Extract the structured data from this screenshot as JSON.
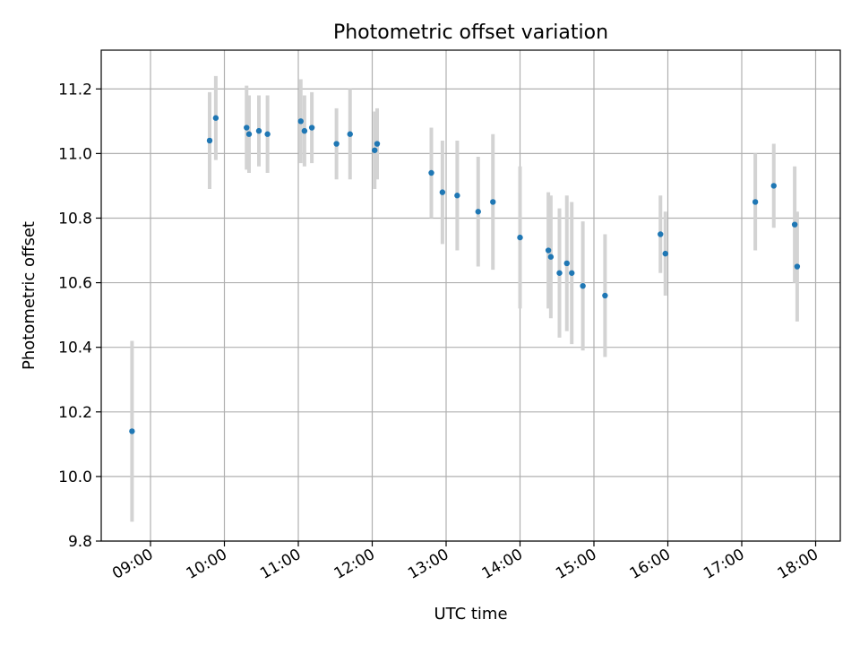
{
  "chart_data": {
    "type": "scatter",
    "title": "Photometric offset variation",
    "xlabel": "UTC time",
    "ylabel": "Photometric offset",
    "x_ticks": [
      "09:00",
      "10:00",
      "11:00",
      "12:00",
      "13:00",
      "14:00",
      "15:00",
      "16:00",
      "17:00",
      "18:00"
    ],
    "y_ticks": [
      "9.8",
      "10.0",
      "10.2",
      "10.4",
      "10.6",
      "10.8",
      "11.0",
      "11.2"
    ],
    "xlim": [
      "08:20",
      "18:20"
    ],
    "ylim": [
      9.8,
      11.32
    ],
    "grid": true,
    "marker_color": "#1f77b4",
    "errorbar_color": "#d3d3d3",
    "series": [
      {
        "points": [
          {
            "x": "08:45",
            "y": 10.14,
            "err": 0.28
          },
          {
            "x": "09:48",
            "y": 11.04,
            "err": 0.15
          },
          {
            "x": "09:53",
            "y": 11.11,
            "err": 0.13
          },
          {
            "x": "10:18",
            "y": 11.08,
            "err": 0.13
          },
          {
            "x": "10:20",
            "y": 11.06,
            "err": 0.12
          },
          {
            "x": "10:28",
            "y": 11.07,
            "err": 0.11
          },
          {
            "x": "10:35",
            "y": 11.06,
            "err": 0.12
          },
          {
            "x": "11:02",
            "y": 11.1,
            "err": 0.13
          },
          {
            "x": "11:05",
            "y": 11.07,
            "err": 0.11
          },
          {
            "x": "11:11",
            "y": 11.08,
            "err": 0.11
          },
          {
            "x": "11:31",
            "y": 11.03,
            "err": 0.11
          },
          {
            "x": "11:42",
            "y": 11.06,
            "err": 0.14
          },
          {
            "x": "12:02",
            "y": 11.01,
            "err": 0.12
          },
          {
            "x": "12:04",
            "y": 11.03,
            "err": 0.11
          },
          {
            "x": "12:48",
            "y": 10.94,
            "err": 0.14
          },
          {
            "x": "12:57",
            "y": 10.88,
            "err": 0.16
          },
          {
            "x": "13:09",
            "y": 10.87,
            "err": 0.17
          },
          {
            "x": "13:26",
            "y": 10.82,
            "err": 0.17
          },
          {
            "x": "13:38",
            "y": 10.85,
            "err": 0.21
          },
          {
            "x": "14:00",
            "y": 10.74,
            "err": 0.22
          },
          {
            "x": "14:23",
            "y": 10.7,
            "err": 0.18
          },
          {
            "x": "14:25",
            "y": 10.68,
            "err": 0.19
          },
          {
            "x": "14:32",
            "y": 10.63,
            "err": 0.2
          },
          {
            "x": "14:38",
            "y": 10.66,
            "err": 0.21
          },
          {
            "x": "14:42",
            "y": 10.63,
            "err": 0.22
          },
          {
            "x": "14:51",
            "y": 10.59,
            "err": 0.2
          },
          {
            "x": "15:09",
            "y": 10.56,
            "err": 0.19
          },
          {
            "x": "15:54",
            "y": 10.75,
            "err": 0.12
          },
          {
            "x": "15:58",
            "y": 10.69,
            "err": 0.13
          },
          {
            "x": "17:11",
            "y": 10.85,
            "err": 0.15
          },
          {
            "x": "17:26",
            "y": 10.9,
            "err": 0.13
          },
          {
            "x": "17:43",
            "y": 10.78,
            "err": 0.18
          },
          {
            "x": "17:45",
            "y": 10.65,
            "err": 0.17
          }
        ]
      }
    ]
  }
}
